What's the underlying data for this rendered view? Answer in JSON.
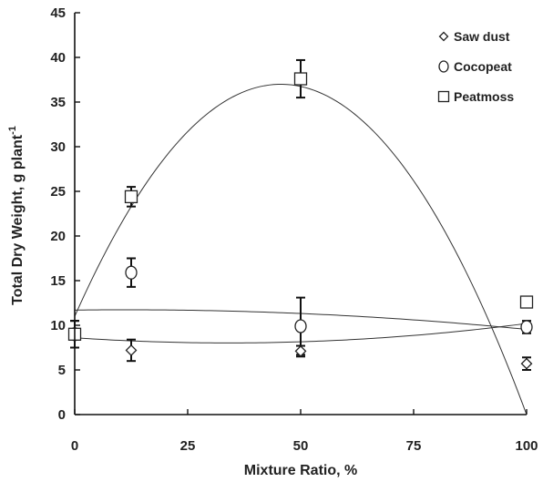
{
  "chart_data": {
    "type": "scatter",
    "xlabel": "Mixture Ratio,  %",
    "ylabel": "Total Dry Weight, g plant",
    "ylabel_superscript": "-1",
    "xlim": [
      0,
      100
    ],
    "ylim": [
      0,
      45
    ],
    "x_ticks": [
      0,
      25,
      50,
      75,
      100
    ],
    "y_ticks": [
      0,
      5,
      10,
      15,
      20,
      25,
      30,
      35,
      40,
      45
    ],
    "grid": false,
    "legend_position": "top-right",
    "series": [
      {
        "name": "Saw dust",
        "marker": "diamond",
        "x": [
          0,
          12.5,
          50,
          100
        ],
        "y": [
          9.0,
          7.2,
          7.1,
          5.7
        ],
        "error": [
          1.5,
          1.2,
          0.6,
          0.7
        ],
        "fit": [
          8.6,
          -0.034,
          0.0005
        ]
      },
      {
        "name": "Cocopeat",
        "marker": "circle",
        "x": [
          0,
          12.5,
          50,
          100
        ],
        "y": [
          9.0,
          15.9,
          9.9,
          9.8
        ],
        "error": [
          1.5,
          1.6,
          3.2,
          0.7
        ],
        "fit": [
          11.7,
          0.0064,
          -0.00028
        ]
      },
      {
        "name": "Peatmoss",
        "marker": "square",
        "x": [
          0,
          12.5,
          50,
          100
        ],
        "y": [
          9.0,
          24.4,
          37.6,
          12.6
        ],
        "error": [
          1.5,
          1.1,
          2.1,
          0.3
        ],
        "fit": [
          11.0,
          1.14,
          -0.0125
        ]
      }
    ]
  }
}
